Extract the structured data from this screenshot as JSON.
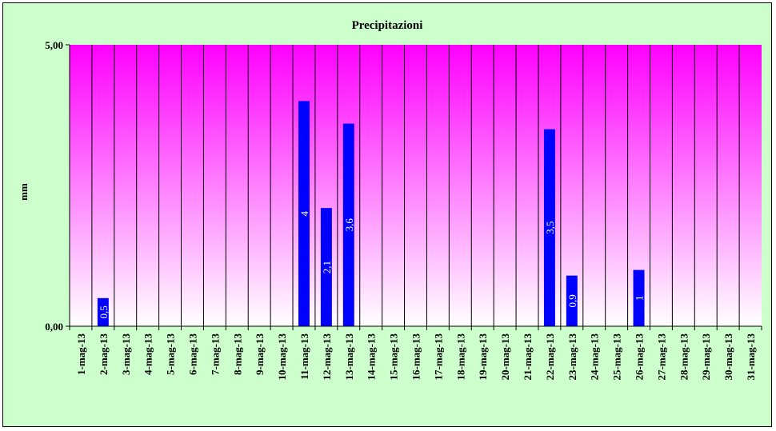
{
  "chart_data": {
    "type": "bar",
    "title": "Precipitazioni",
    "ylabel": "mm",
    "xlabel": "",
    "ylim": [
      0,
      5
    ],
    "y_ticks": [
      "0,00",
      "5,00"
    ],
    "categories": [
      "1-mag-13",
      "2-mag-13",
      "3-mag-13",
      "4-mag-13",
      "5-mag-13",
      "6-mag-13",
      "7-mag-13",
      "8-mag-13",
      "9-mag-13",
      "10-mag-13",
      "11-mag-13",
      "12-mag-13",
      "13-mag-13",
      "14-mag-13",
      "15-mag-13",
      "16-mag-13",
      "17-mag-13",
      "18-mag-13",
      "19-mag-13",
      "20-mag-13",
      "21-mag-13",
      "22-mag-13",
      "23-mag-13",
      "24-mag-13",
      "25-mag-13",
      "26-mag-13",
      "27-mag-13",
      "28-mag-13",
      "29-mag-13",
      "30-mag-13",
      "31-mag-13"
    ],
    "values": [
      0,
      0.5,
      0,
      0,
      0,
      0,
      0,
      0,
      0,
      0,
      4,
      2.1,
      3.6,
      0,
      0,
      0,
      0,
      0,
      0,
      0,
      0,
      3.5,
      0.9,
      0,
      0,
      1,
      0,
      0,
      0,
      0,
      0
    ],
    "data_labels": [
      "",
      "0,5",
      "",
      "",
      "",
      "",
      "",
      "",
      "",
      "",
      "4",
      "2,1",
      "3,6",
      "",
      "",
      "",
      "",
      "",
      "",
      "",
      "",
      "3,5",
      "0,9",
      "",
      "",
      "1",
      "",
      "",
      "",
      "",
      ""
    ],
    "legend": "none",
    "grid": "vertical",
    "colors": {
      "bar": "#0000ff",
      "plot_top": "#ff00ff",
      "plot_bottom": "#ffffff",
      "chart_bg": "#ccffcc",
      "label_text": "#ffffff"
    }
  }
}
